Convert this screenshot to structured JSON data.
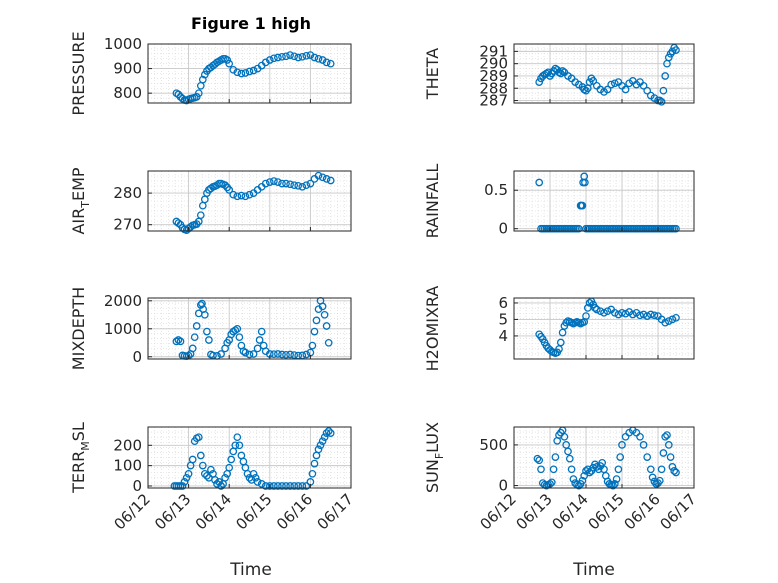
{
  "figure": {
    "title": "Figure 1 high",
    "marker_color": "#0072BD",
    "xlabel_left": "Time",
    "xlabel_right": "Time",
    "xticks": [
      "06/12",
      "06/13",
      "06/14",
      "06/15",
      "06/16",
      "06/17"
    ]
  },
  "chart_data": [
    {
      "id": "pressure",
      "type": "scatter",
      "marker": "circle",
      "grid": "major+minor",
      "title": "Figure 1 high",
      "ylabel": {
        "main": "PRESSURE",
        "sub": ""
      },
      "xlim": [
        0,
        5
      ],
      "ylim": [
        760,
        1000
      ],
      "yticks": [
        800,
        900,
        1000
      ],
      "x": [
        0.7,
        0.75,
        0.8,
        0.85,
        0.9,
        0.95,
        1.0,
        1.05,
        1.1,
        1.15,
        1.2,
        1.25,
        1.3,
        1.35,
        1.4,
        1.45,
        1.5,
        1.55,
        1.6,
        1.65,
        1.7,
        1.75,
        1.8,
        1.85,
        1.9,
        1.95,
        2.0,
        2.1,
        2.2,
        2.3,
        2.4,
        2.5,
        2.6,
        2.7,
        2.8,
        2.9,
        3.0,
        3.1,
        3.2,
        3.3,
        3.4,
        3.5,
        3.6,
        3.7,
        3.8,
        3.9,
        4.0,
        4.1,
        4.2,
        4.3,
        4.4,
        4.5
      ],
      "y": [
        800,
        795,
        785,
        778,
        772,
        770,
        775,
        778,
        780,
        782,
        785,
        800,
        830,
        855,
        875,
        890,
        900,
        905,
        912,
        918,
        925,
        930,
        935,
        940,
        940,
        935,
        920,
        895,
        885,
        880,
        882,
        888,
        892,
        900,
        912,
        925,
        935,
        942,
        945,
        948,
        950,
        955,
        950,
        945,
        948,
        952,
        955,
        945,
        940,
        935,
        925,
        920
      ]
    },
    {
      "id": "theta",
      "type": "scatter",
      "marker": "circle",
      "grid": "major+minor",
      "ylabel": {
        "main": "THETA",
        "sub": ""
      },
      "xlim": [
        0,
        5
      ],
      "ylim": [
        286.8,
        291.6
      ],
      "yticks": [
        287,
        288,
        289,
        290,
        291
      ],
      "x": [
        0.7,
        0.75,
        0.8,
        0.85,
        0.9,
        0.95,
        1.0,
        1.05,
        1.1,
        1.15,
        1.2,
        1.25,
        1.3,
        1.35,
        1.4,
        1.5,
        1.6,
        1.7,
        1.8,
        1.9,
        1.95,
        2.0,
        2.05,
        2.1,
        2.15,
        2.2,
        2.3,
        2.4,
        2.5,
        2.6,
        2.7,
        2.8,
        2.9,
        3.0,
        3.1,
        3.2,
        3.3,
        3.4,
        3.5,
        3.6,
        3.7,
        3.8,
        3.9,
        4.0,
        4.05,
        4.1,
        4.15,
        4.2,
        4.25,
        4.3,
        4.35,
        4.4,
        4.45,
        4.5
      ],
      "y": [
        288.5,
        288.8,
        289.0,
        289.1,
        289.2,
        289.3,
        289.0,
        289.2,
        289.4,
        289.6,
        289.5,
        289.3,
        289.2,
        289.4,
        289.3,
        289.0,
        288.8,
        288.5,
        288.3,
        288.1,
        287.9,
        287.8,
        288.0,
        288.5,
        288.8,
        288.6,
        288.2,
        287.9,
        287.7,
        287.9,
        288.3,
        288.4,
        288.5,
        288.2,
        287.9,
        288.4,
        288.6,
        288.3,
        288.5,
        288.2,
        287.8,
        287.4,
        287.2,
        287.0,
        287.0,
        286.9,
        287.8,
        289.0,
        290.0,
        290.5,
        290.8,
        291.0,
        291.3,
        291.1
      ]
    },
    {
      "id": "air_temp",
      "type": "scatter",
      "marker": "circle",
      "grid": "major+minor",
      "ylabel": {
        "main": "AIR",
        "sub": "T",
        "rest": "EMP"
      },
      "xlim": [
        0,
        5
      ],
      "ylim": [
        268,
        287
      ],
      "yticks": [
        270,
        280
      ],
      "x": [
        0.7,
        0.75,
        0.8,
        0.85,
        0.9,
        0.95,
        1.0,
        1.05,
        1.1,
        1.15,
        1.2,
        1.25,
        1.3,
        1.35,
        1.4,
        1.45,
        1.5,
        1.55,
        1.6,
        1.65,
        1.7,
        1.75,
        1.8,
        1.85,
        1.9,
        1.95,
        2.0,
        2.1,
        2.2,
        2.3,
        2.4,
        2.5,
        2.6,
        2.7,
        2.8,
        2.9,
        3.0,
        3.1,
        3.2,
        3.3,
        3.4,
        3.5,
        3.6,
        3.7,
        3.8,
        3.9,
        4.0,
        4.1,
        4.2,
        4.3,
        4.4,
        4.5
      ],
      "y": [
        271,
        270.5,
        270,
        269,
        268.5,
        268.3,
        268.8,
        269.3,
        269.8,
        270,
        270.2,
        271,
        273,
        276,
        278,
        280,
        281,
        281.5,
        282,
        282.2,
        282.5,
        283,
        283,
        282.8,
        282.5,
        281.8,
        281,
        279.5,
        279,
        279.2,
        279,
        279.5,
        280,
        281,
        282,
        283,
        283.5,
        283.8,
        283.5,
        283,
        283,
        282.8,
        282.5,
        282.3,
        282,
        282.5,
        283,
        284.5,
        285.5,
        285,
        284.5,
        284
      ]
    },
    {
      "id": "rainfall",
      "type": "scatter",
      "marker": "circle",
      "grid": "major+minor",
      "ylabel": {
        "main": "RAINFALL",
        "sub": ""
      },
      "xlim": [
        0,
        5
      ],
      "ylim": [
        -0.03,
        0.75
      ],
      "yticks": [
        0,
        0.5
      ],
      "ytick_labels": [
        "0",
        "0.5"
      ],
      "x": [
        0.7,
        0.75,
        0.8,
        0.85,
        0.9,
        0.95,
        1.0,
        1.05,
        1.1,
        1.15,
        1.2,
        1.25,
        1.3,
        1.35,
        1.4,
        1.45,
        1.5,
        1.55,
        1.6,
        1.65,
        1.7,
        1.75,
        1.8,
        1.85,
        1.86,
        1.88,
        1.9,
        1.92,
        1.95,
        1.97,
        2.0,
        2.05,
        2.1,
        2.15,
        2.2,
        2.25,
        2.3,
        2.35,
        2.4,
        2.45,
        2.5,
        2.55,
        2.6,
        2.65,
        2.7,
        2.75,
        2.8,
        2.85,
        2.9,
        2.95,
        3.0,
        3.05,
        3.1,
        3.15,
        3.2,
        3.25,
        3.3,
        3.35,
        3.4,
        3.45,
        3.5,
        3.55,
        3.6,
        3.65,
        3.7,
        3.75,
        3.8,
        3.85,
        3.9,
        3.95,
        4.0,
        4.05,
        4.1,
        4.15,
        4.2,
        4.25,
        4.3,
        4.35,
        4.4,
        4.45,
        4.5
      ],
      "y": [
        0.6,
        0,
        0,
        0,
        0,
        0,
        0,
        0,
        0,
        0,
        0,
        0,
        0,
        0,
        0,
        0,
        0,
        0,
        0,
        0,
        0,
        0,
        0,
        0.3,
        0.3,
        0.3,
        0.3,
        0.6,
        0.68,
        0.6,
        0,
        0,
        0,
        0,
        0,
        0,
        0,
        0,
        0,
        0,
        0,
        0,
        0,
        0,
        0,
        0,
        0,
        0,
        0,
        0,
        0,
        0,
        0,
        0,
        0,
        0,
        0,
        0,
        0,
        0,
        0,
        0,
        0,
        0,
        0,
        0,
        0,
        0,
        0,
        0,
        0,
        0,
        0,
        0,
        0,
        0,
        0,
        0,
        0,
        0,
        0
      ]
    },
    {
      "id": "mixdepth",
      "type": "scatter",
      "marker": "circle",
      "grid": "major+minor",
      "ylabel": {
        "main": "MIXDEPTH",
        "sub": ""
      },
      "xlim": [
        0,
        5
      ],
      "ylim": [
        -80,
        2100
      ],
      "yticks": [
        0,
        1000,
        2000
      ],
      "x": [
        0.7,
        0.75,
        0.8,
        0.85,
        0.9,
        0.95,
        1.0,
        1.05,
        1.1,
        1.15,
        1.2,
        1.25,
        1.3,
        1.33,
        1.36,
        1.4,
        1.45,
        1.5,
        1.55,
        1.6,
        1.7,
        1.8,
        1.9,
        1.95,
        2.0,
        2.05,
        2.1,
        2.15,
        2.2,
        2.25,
        2.3,
        2.35,
        2.4,
        2.5,
        2.6,
        2.7,
        2.75,
        2.8,
        2.85,
        2.9,
        3.0,
        3.1,
        3.2,
        3.3,
        3.4,
        3.5,
        3.6,
        3.7,
        3.8,
        3.9,
        4.0,
        4.05,
        4.1,
        4.15,
        4.2,
        4.25,
        4.3,
        4.35,
        4.4,
        4.45
      ],
      "y": [
        550,
        600,
        550,
        50,
        30,
        20,
        40,
        100,
        300,
        700,
        1100,
        1550,
        1850,
        1900,
        1700,
        1500,
        900,
        600,
        80,
        40,
        30,
        100,
        300,
        500,
        600,
        800,
        900,
        950,
        1000,
        700,
        400,
        200,
        150,
        80,
        100,
        300,
        600,
        900,
        400,
        200,
        100,
        90,
        100,
        80,
        70,
        80,
        60,
        40,
        50,
        80,
        150,
        400,
        900,
        1300,
        1700,
        2000,
        1800,
        1500,
        1100,
        500
      ]
    },
    {
      "id": "h2omixra",
      "type": "scatter",
      "marker": "circle",
      "grid": "major+minor",
      "ylabel": {
        "main": "H2OMIXRA",
        "sub": ""
      },
      "xlim": [
        0,
        5
      ],
      "ylim": [
        2.6,
        6.3
      ],
      "yticks": [
        4,
        5,
        6
      ],
      "x": [
        0.7,
        0.75,
        0.8,
        0.85,
        0.9,
        0.95,
        1.0,
        1.05,
        1.1,
        1.15,
        1.2,
        1.25,
        1.3,
        1.35,
        1.4,
        1.45,
        1.5,
        1.55,
        1.6,
        1.65,
        1.7,
        1.75,
        1.8,
        1.85,
        1.9,
        1.95,
        2.0,
        2.05,
        2.1,
        2.15,
        2.2,
        2.25,
        2.3,
        2.4,
        2.5,
        2.6,
        2.7,
        2.8,
        2.9,
        3.0,
        3.1,
        3.2,
        3.3,
        3.4,
        3.5,
        3.6,
        3.7,
        3.8,
        3.9,
        4.0,
        4.1,
        4.2,
        4.3,
        4.4,
        4.5
      ],
      "y": [
        4.1,
        3.95,
        3.8,
        3.6,
        3.4,
        3.25,
        3.15,
        3.05,
        3.0,
        2.95,
        3.0,
        3.2,
        3.6,
        4.2,
        4.6,
        4.8,
        4.9,
        4.85,
        4.8,
        4.75,
        4.8,
        4.85,
        4.8,
        4.75,
        4.8,
        4.85,
        5.2,
        5.7,
        6.0,
        6.1,
        5.9,
        5.7,
        5.6,
        5.5,
        5.4,
        5.5,
        5.6,
        5.4,
        5.3,
        5.4,
        5.35,
        5.45,
        5.3,
        5.4,
        5.25,
        5.3,
        5.2,
        5.3,
        5.25,
        5.2,
        5.0,
        4.8,
        4.9,
        5.0,
        5.1
      ]
    },
    {
      "id": "terr_msl",
      "type": "scatter",
      "marker": "circle",
      "grid": "major+minor",
      "ylabel": {
        "main": "TERR",
        "sub": "M",
        "rest": "SL"
      },
      "xlim": [
        0,
        5
      ],
      "ylim": [
        -10,
        290
      ],
      "yticks": [
        0,
        100,
        200
      ],
      "x": [
        0.65,
        0.7,
        0.75,
        0.8,
        0.85,
        0.9,
        0.95,
        1.0,
        1.05,
        1.1,
        1.15,
        1.2,
        1.25,
        1.3,
        1.35,
        1.4,
        1.45,
        1.5,
        1.55,
        1.6,
        1.65,
        1.7,
        1.75,
        1.8,
        1.85,
        1.9,
        1.95,
        2.0,
        2.05,
        2.1,
        2.15,
        2.2,
        2.25,
        2.3,
        2.35,
        2.4,
        2.45,
        2.5,
        2.55,
        2.6,
        2.65,
        2.7,
        2.8,
        2.9,
        3.0,
        3.1,
        3.2,
        3.3,
        3.4,
        3.5,
        3.6,
        3.7,
        3.8,
        3.9,
        4.0,
        4.05,
        4.1,
        4.15,
        4.2,
        4.25,
        4.3,
        4.35,
        4.4,
        4.45,
        4.5
      ],
      "y": [
        0,
        0,
        0,
        0,
        0,
        20,
        40,
        60,
        100,
        130,
        220,
        235,
        240,
        150,
        100,
        60,
        50,
        40,
        80,
        60,
        30,
        10,
        20,
        0,
        10,
        40,
        60,
        90,
        130,
        170,
        200,
        240,
        200,
        150,
        120,
        90,
        60,
        40,
        30,
        60,
        40,
        20,
        10,
        0,
        0,
        0,
        0,
        0,
        0,
        0,
        0,
        0,
        0,
        0,
        20,
        60,
        110,
        150,
        180,
        200,
        220,
        240,
        260,
        270,
        260
      ]
    },
    {
      "id": "sun_flux",
      "type": "scatter",
      "marker": "circle",
      "grid": "major+minor",
      "ylabel": {
        "main": "SUN",
        "sub": "F",
        "rest": "LUX"
      },
      "xlim": [
        0,
        5
      ],
      "ylim": [
        -30,
        720
      ],
      "yticks": [
        0,
        500
      ],
      "x": [
        0.65,
        0.7,
        0.75,
        0.8,
        0.85,
        0.9,
        0.95,
        1.0,
        1.05,
        1.1,
        1.15,
        1.2,
        1.25,
        1.3,
        1.35,
        1.4,
        1.45,
        1.5,
        1.55,
        1.6,
        1.65,
        1.7,
        1.75,
        1.8,
        1.85,
        1.9,
        1.95,
        2.0,
        2.05,
        2.1,
        2.15,
        2.2,
        2.25,
        2.3,
        2.35,
        2.4,
        2.45,
        2.5,
        2.55,
        2.6,
        2.65,
        2.7,
        2.75,
        2.8,
        2.85,
        2.9,
        2.95,
        3.0,
        3.1,
        3.2,
        3.3,
        3.4,
        3.5,
        3.6,
        3.7,
        3.8,
        3.85,
        3.9,
        3.95,
        4.0,
        4.05,
        4.1,
        4.15,
        4.2,
        4.25,
        4.3,
        4.35,
        4.4,
        4.45,
        4.5
      ],
      "y": [
        330,
        310,
        200,
        30,
        10,
        0,
        10,
        20,
        40,
        200,
        350,
        550,
        620,
        650,
        680,
        600,
        500,
        420,
        330,
        200,
        80,
        30,
        10,
        0,
        20,
        60,
        120,
        180,
        200,
        160,
        180,
        220,
        260,
        230,
        200,
        240,
        280,
        200,
        120,
        50,
        20,
        10,
        0,
        20,
        80,
        200,
        350,
        500,
        600,
        650,
        680,
        650,
        600,
        500,
        350,
        200,
        100,
        50,
        20,
        30,
        60,
        200,
        400,
        600,
        620,
        500,
        350,
        230,
        180,
        160
      ]
    }
  ]
}
